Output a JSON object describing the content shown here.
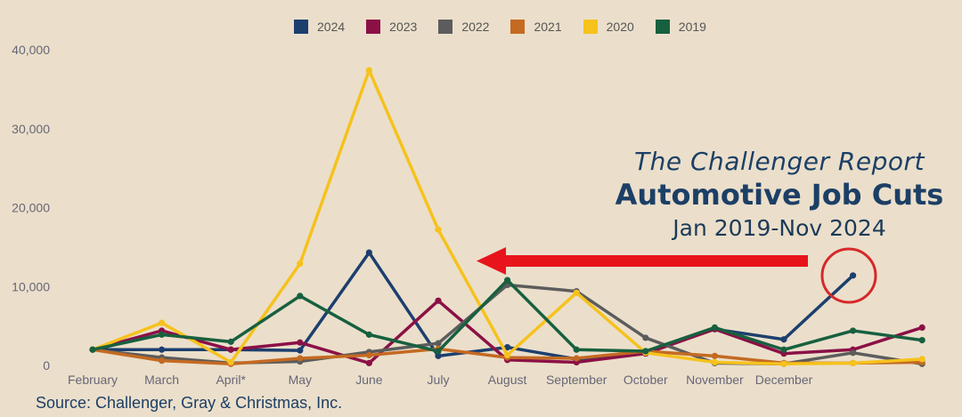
{
  "chart_data": {
    "type": "line",
    "categories": [
      "February",
      "March",
      "April*",
      "May",
      "June",
      "July",
      "August",
      "September",
      "October",
      "November",
      "December",
      "",
      ""
    ],
    "ylim": [
      0,
      40000
    ],
    "yticks": [
      0,
      10000,
      20000,
      30000,
      40000
    ],
    "ytick_labels": [
      "0",
      "10,000",
      "20,000",
      "30,000",
      "40,000"
    ],
    "legend_position": "top-center",
    "grid": false,
    "series": [
      {
        "name": "2024",
        "color": "#1c3f6e",
        "values": [
          2000,
          2000,
          2000,
          1900,
          14300,
          1200,
          2300,
          800,
          1700,
          4600,
          3300,
          11400,
          null
        ]
      },
      {
        "name": "2023",
        "color": "#8b1046",
        "values": [
          2000,
          4400,
          2000,
          2900,
          300,
          8200,
          700,
          400,
          1500,
          4600,
          1500,
          2000,
          4800
        ]
      },
      {
        "name": "2022",
        "color": "#5c5c5c",
        "values": [
          2000,
          1000,
          300,
          500,
          1700,
          2800,
          10200,
          9400,
          3500,
          300,
          200,
          1600,
          200
        ]
      },
      {
        "name": "2021",
        "color": "#c46a22",
        "values": [
          2000,
          600,
          200,
          900,
          1300,
          2100,
          1000,
          900,
          1800,
          1200,
          300,
          300,
          400
        ]
      },
      {
        "name": "2020",
        "color": "#f6c21c",
        "values": [
          2000,
          5400,
          400,
          12900,
          37400,
          17200,
          1300,
          9200,
          1600,
          400,
          200,
          300,
          800
        ]
      },
      {
        "name": "2019",
        "color": "#17603f",
        "values": [
          2000,
          3900,
          3000,
          8800,
          3900,
          1800,
          10800,
          2000,
          1800,
          4800,
          2000,
          4400,
          3200
        ]
      }
    ]
  },
  "annotation": {
    "italic_line": "The Challenger Report",
    "bold_line": "Automotive Job Cuts",
    "range_line": "Jan 2019-Nov 2024"
  },
  "source": "Source: Challenger, Gray & Christmas, Inc.",
  "colors": {
    "background": "#ebdfcb",
    "arrow": "#e8141b",
    "circle": "#d6282a",
    "title": "#1c3f66"
  }
}
